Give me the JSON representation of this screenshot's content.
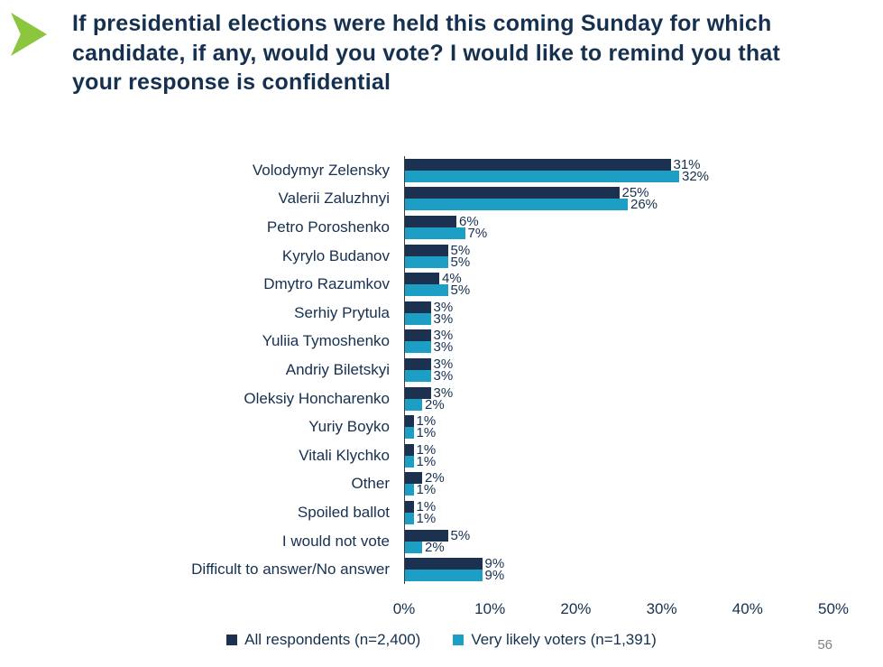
{
  "slide": {
    "title": "If presidential elections were held this coming Sunday for which candidate, if any, would you vote? I would like to remind you that your response is confidential",
    "page_number": "56"
  },
  "icons": {
    "arrow": "green-right-arrow"
  },
  "chart_data": {
    "type": "bar",
    "orientation": "horizontal",
    "title": "If presidential elections were held this coming Sunday for which candidate, if any, would you vote? I would like to remind you that your response is confidential",
    "categories": [
      "Volodymyr Zelensky",
      "Valerii Zaluzhnyi",
      "Petro Poroshenko",
      "Kyrylo Budanov",
      "Dmytro Razumkov",
      "Serhiy Prytula",
      "Yuliia Tymoshenko",
      "Andriy Biletskyi",
      "Oleksiy Honcharenko",
      "Yuriy Boyko",
      "Vitali Klychko",
      "Other",
      "Spoiled ballot",
      "I would not vote",
      "Difficult to answer/No answer"
    ],
    "series": [
      {
        "name": "All respondents (n=2,400)",
        "color": "#1c3150",
        "values": [
          31,
          25,
          6,
          5,
          4,
          3,
          3,
          3,
          3,
          1,
          1,
          2,
          1,
          5,
          9
        ]
      },
      {
        "name": "Very likely voters (n=1,391)",
        "color": "#1d9ec4",
        "values": [
          32,
          26,
          7,
          5,
          5,
          3,
          3,
          3,
          2,
          1,
          1,
          1,
          1,
          2,
          9
        ]
      }
    ],
    "value_suffix": "%",
    "xlim": [
      0,
      50
    ],
    "x_ticks": [
      "0%",
      "10%",
      "20%",
      "30%",
      "40%",
      "50%"
    ],
    "grid": false,
    "legend_position": "bottom"
  }
}
